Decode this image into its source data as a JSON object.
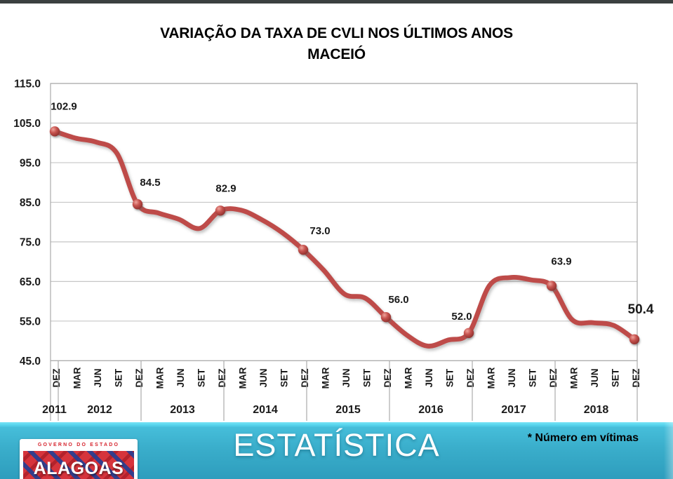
{
  "title": {
    "line1": "VARIAÇÃO DA TAXA DE CVLI NOS ÚLTIMOS ANOS",
    "line2": "MACEIÓ"
  },
  "footer": {
    "banner_text": "ESTATÍSTICA",
    "footnote": "* Número em vítimas",
    "logo": {
      "top_text": "GOVERNO DO ESTADO",
      "name": "ALAGOAS"
    }
  },
  "chart_data": {
    "type": "line",
    "title": "VARIAÇÃO DA TAXA DE CVLI NOS ÚLTIMOS ANOS — MACEIÓ",
    "categories": [
      "DEZ",
      "MAR",
      "JUN",
      "SET",
      "DEZ",
      "MAR",
      "JUN",
      "SET",
      "DEZ",
      "MAR",
      "JUN",
      "SET",
      "DEZ",
      "MAR",
      "JUN",
      "SET",
      "DEZ",
      "MAR",
      "JUN",
      "SET",
      "DEZ",
      "MAR",
      "JUN",
      "SET",
      "DEZ",
      "MAR",
      "JUN",
      "SET",
      "DEZ"
    ],
    "year_groups": [
      {
        "label": "2011",
        "count": 1
      },
      {
        "label": "2012",
        "count": 4
      },
      {
        "label": "2013",
        "count": 4
      },
      {
        "label": "2014",
        "count": 4
      },
      {
        "label": "2015",
        "count": 4
      },
      {
        "label": "2016",
        "count": 4
      },
      {
        "label": "2017",
        "count": 4
      },
      {
        "label": "2018",
        "count": 4
      }
    ],
    "values": [
      102.9,
      101.2,
      100.2,
      97.4,
      84.5,
      82.3,
      80.7,
      78.4,
      82.9,
      83.0,
      80.6,
      77.3,
      73.0,
      67.8,
      61.8,
      60.8,
      56.0,
      51.5,
      48.7,
      50.2,
      52.0,
      64.0,
      66.0,
      65.4,
      63.9,
      55.3,
      54.6,
      53.9,
      50.4
    ],
    "point_labels": [
      {
        "index": 0,
        "text": "102.9"
      },
      {
        "index": 4,
        "text": "84.5"
      },
      {
        "index": 8,
        "text": "82.9"
      },
      {
        "index": 12,
        "text": "73.0"
      },
      {
        "index": 16,
        "text": "56.0"
      },
      {
        "index": 20,
        "text": "52.0"
      },
      {
        "index": 24,
        "text": "63.9"
      },
      {
        "index": 28,
        "text": "50.4"
      }
    ],
    "yticks": [
      "115.0",
      "105.0",
      "95.0",
      "85.0",
      "75.0",
      "65.0",
      "55.0",
      "45.0"
    ],
    "ylim": [
      45,
      115
    ],
    "ytick_step": 10,
    "grid": true,
    "legend": "none",
    "line_color": "#BE4B48",
    "marker_style": "ball-at-DEZ-points"
  }
}
